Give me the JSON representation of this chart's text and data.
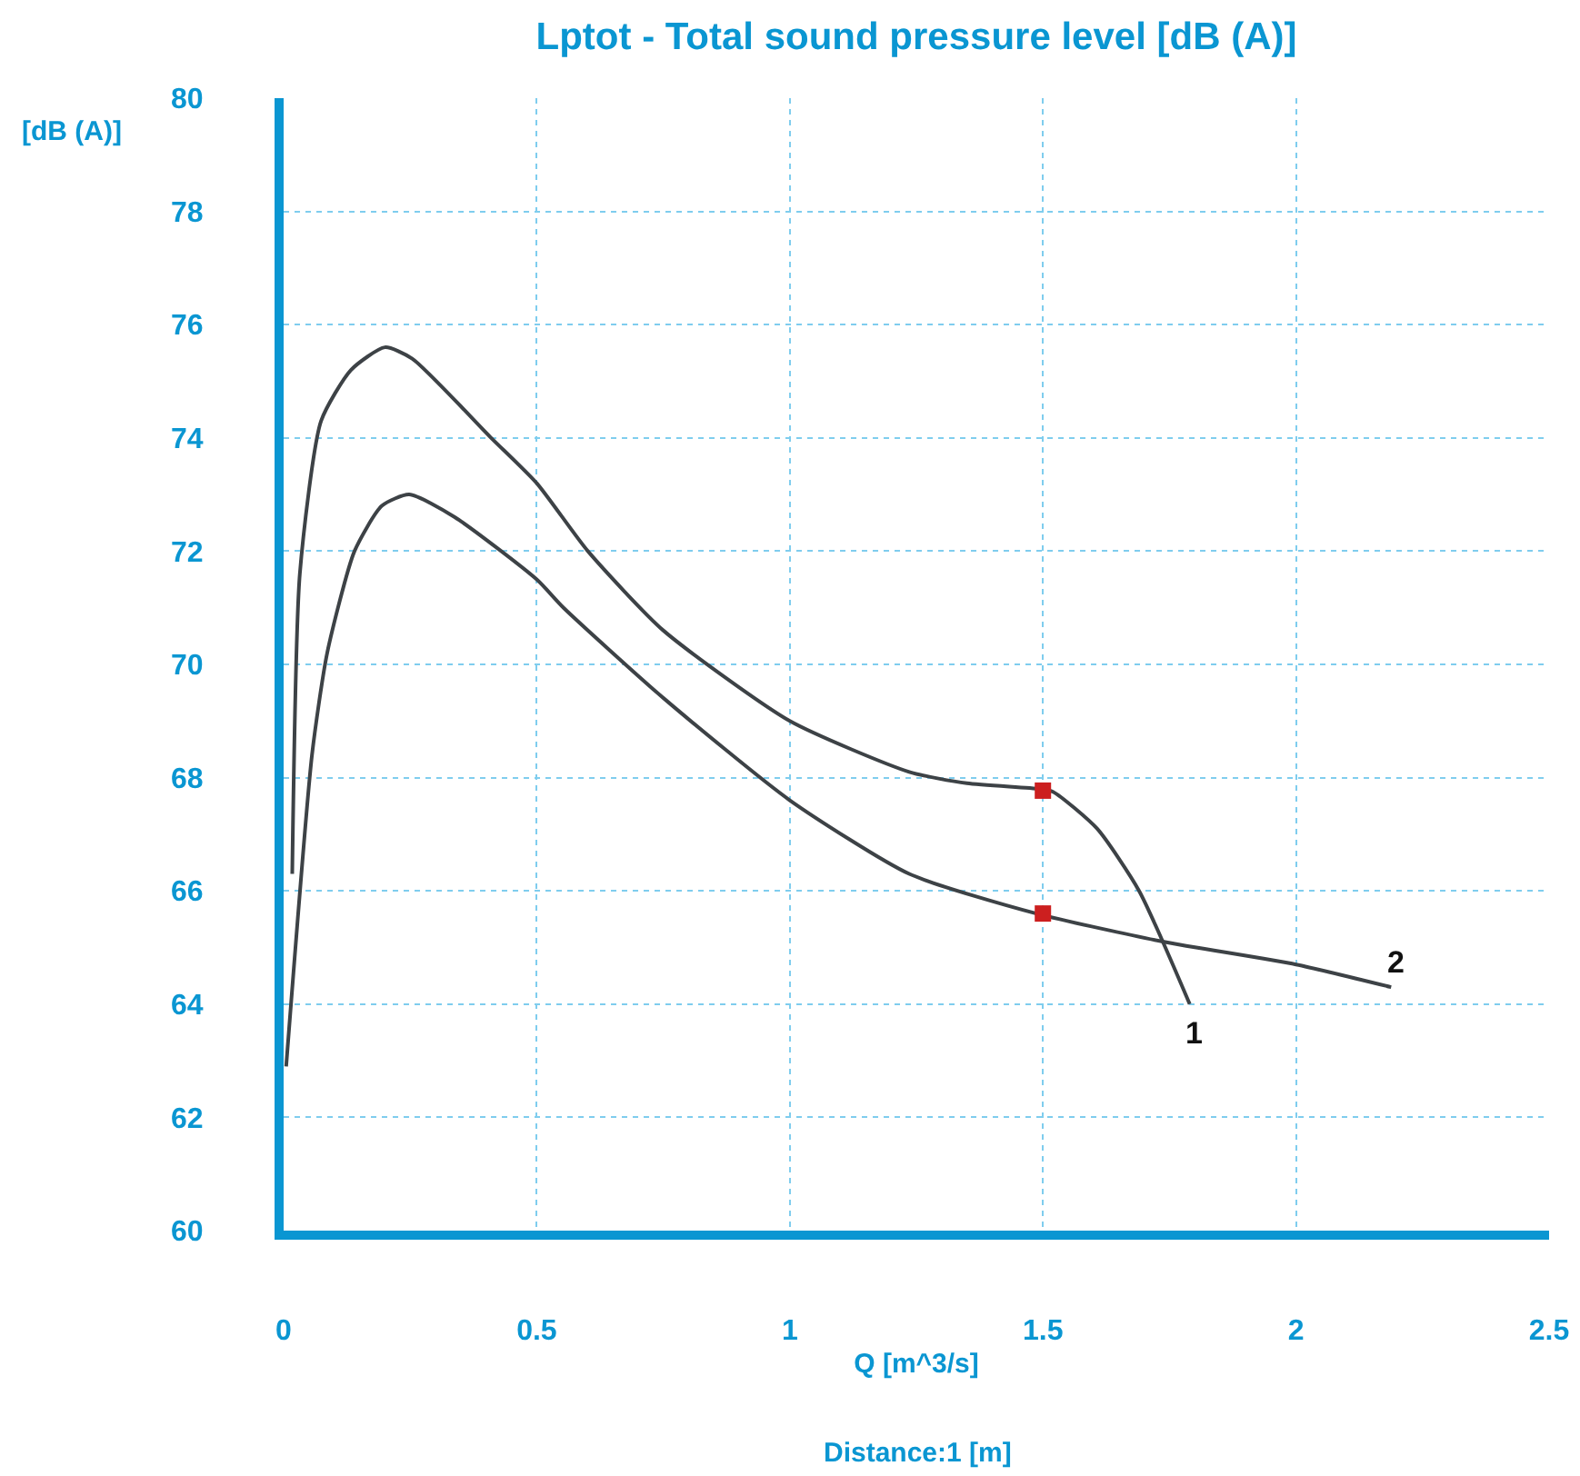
{
  "chart_data": {
    "type": "line",
    "title": "Lptot - Total sound pressure level [dB (A)]",
    "xlabel": "Q [m^3/s]",
    "ylabel": "[dB (A)]",
    "series": [
      {
        "name": "1",
        "color": "#3d4246",
        "x": [
          0.017,
          0.032,
          0.074,
          0.133,
          0.2,
          0.254,
          0.41,
          0.5,
          0.601,
          0.75,
          1.0,
          1.236,
          1.35,
          1.493,
          1.52,
          1.607,
          1.69,
          1.79
        ],
        "values": [
          66.3,
          71.6,
          74.3,
          75.2,
          75.6,
          75.4,
          74.0,
          73.2,
          72.0,
          70.6,
          69.0,
          68.1,
          67.9,
          67.8,
          67.75,
          67.1,
          66.0,
          64.0
        ]
      },
      {
        "name": "2",
        "color": "#3d4246",
        "x": [
          0.005,
          0.056,
          0.086,
          0.14,
          0.194,
          0.248,
          0.338,
          0.5,
          0.553,
          0.751,
          1.0,
          1.236,
          1.487,
          1.739,
          2.0,
          2.188
        ],
        "values": [
          62.9,
          68.4,
          70.2,
          72.0,
          72.8,
          73.0,
          72.6,
          71.5,
          71.0,
          69.4,
          67.6,
          66.3,
          65.6,
          65.1,
          64.7,
          64.3
        ]
      },
      {
        "type": "scatter",
        "color": "#cc1f1f",
        "marker": "square",
        "x": [
          1.5,
          1.5
        ],
        "values": [
          67.77,
          65.6
        ]
      }
    ],
    "xlim": [
      0,
      2.5
    ],
    "xticks": [
      0,
      0.5,
      1,
      1.5,
      2,
      2.5
    ],
    "ylim": [
      60,
      80
    ],
    "yticks": [
      60,
      62,
      64,
      66,
      68,
      70,
      72,
      74,
      76,
      78,
      80
    ],
    "grid": true,
    "legend": false,
    "marker": "none",
    "annotations": [
      "Distance:1 [m]"
    ]
  }
}
